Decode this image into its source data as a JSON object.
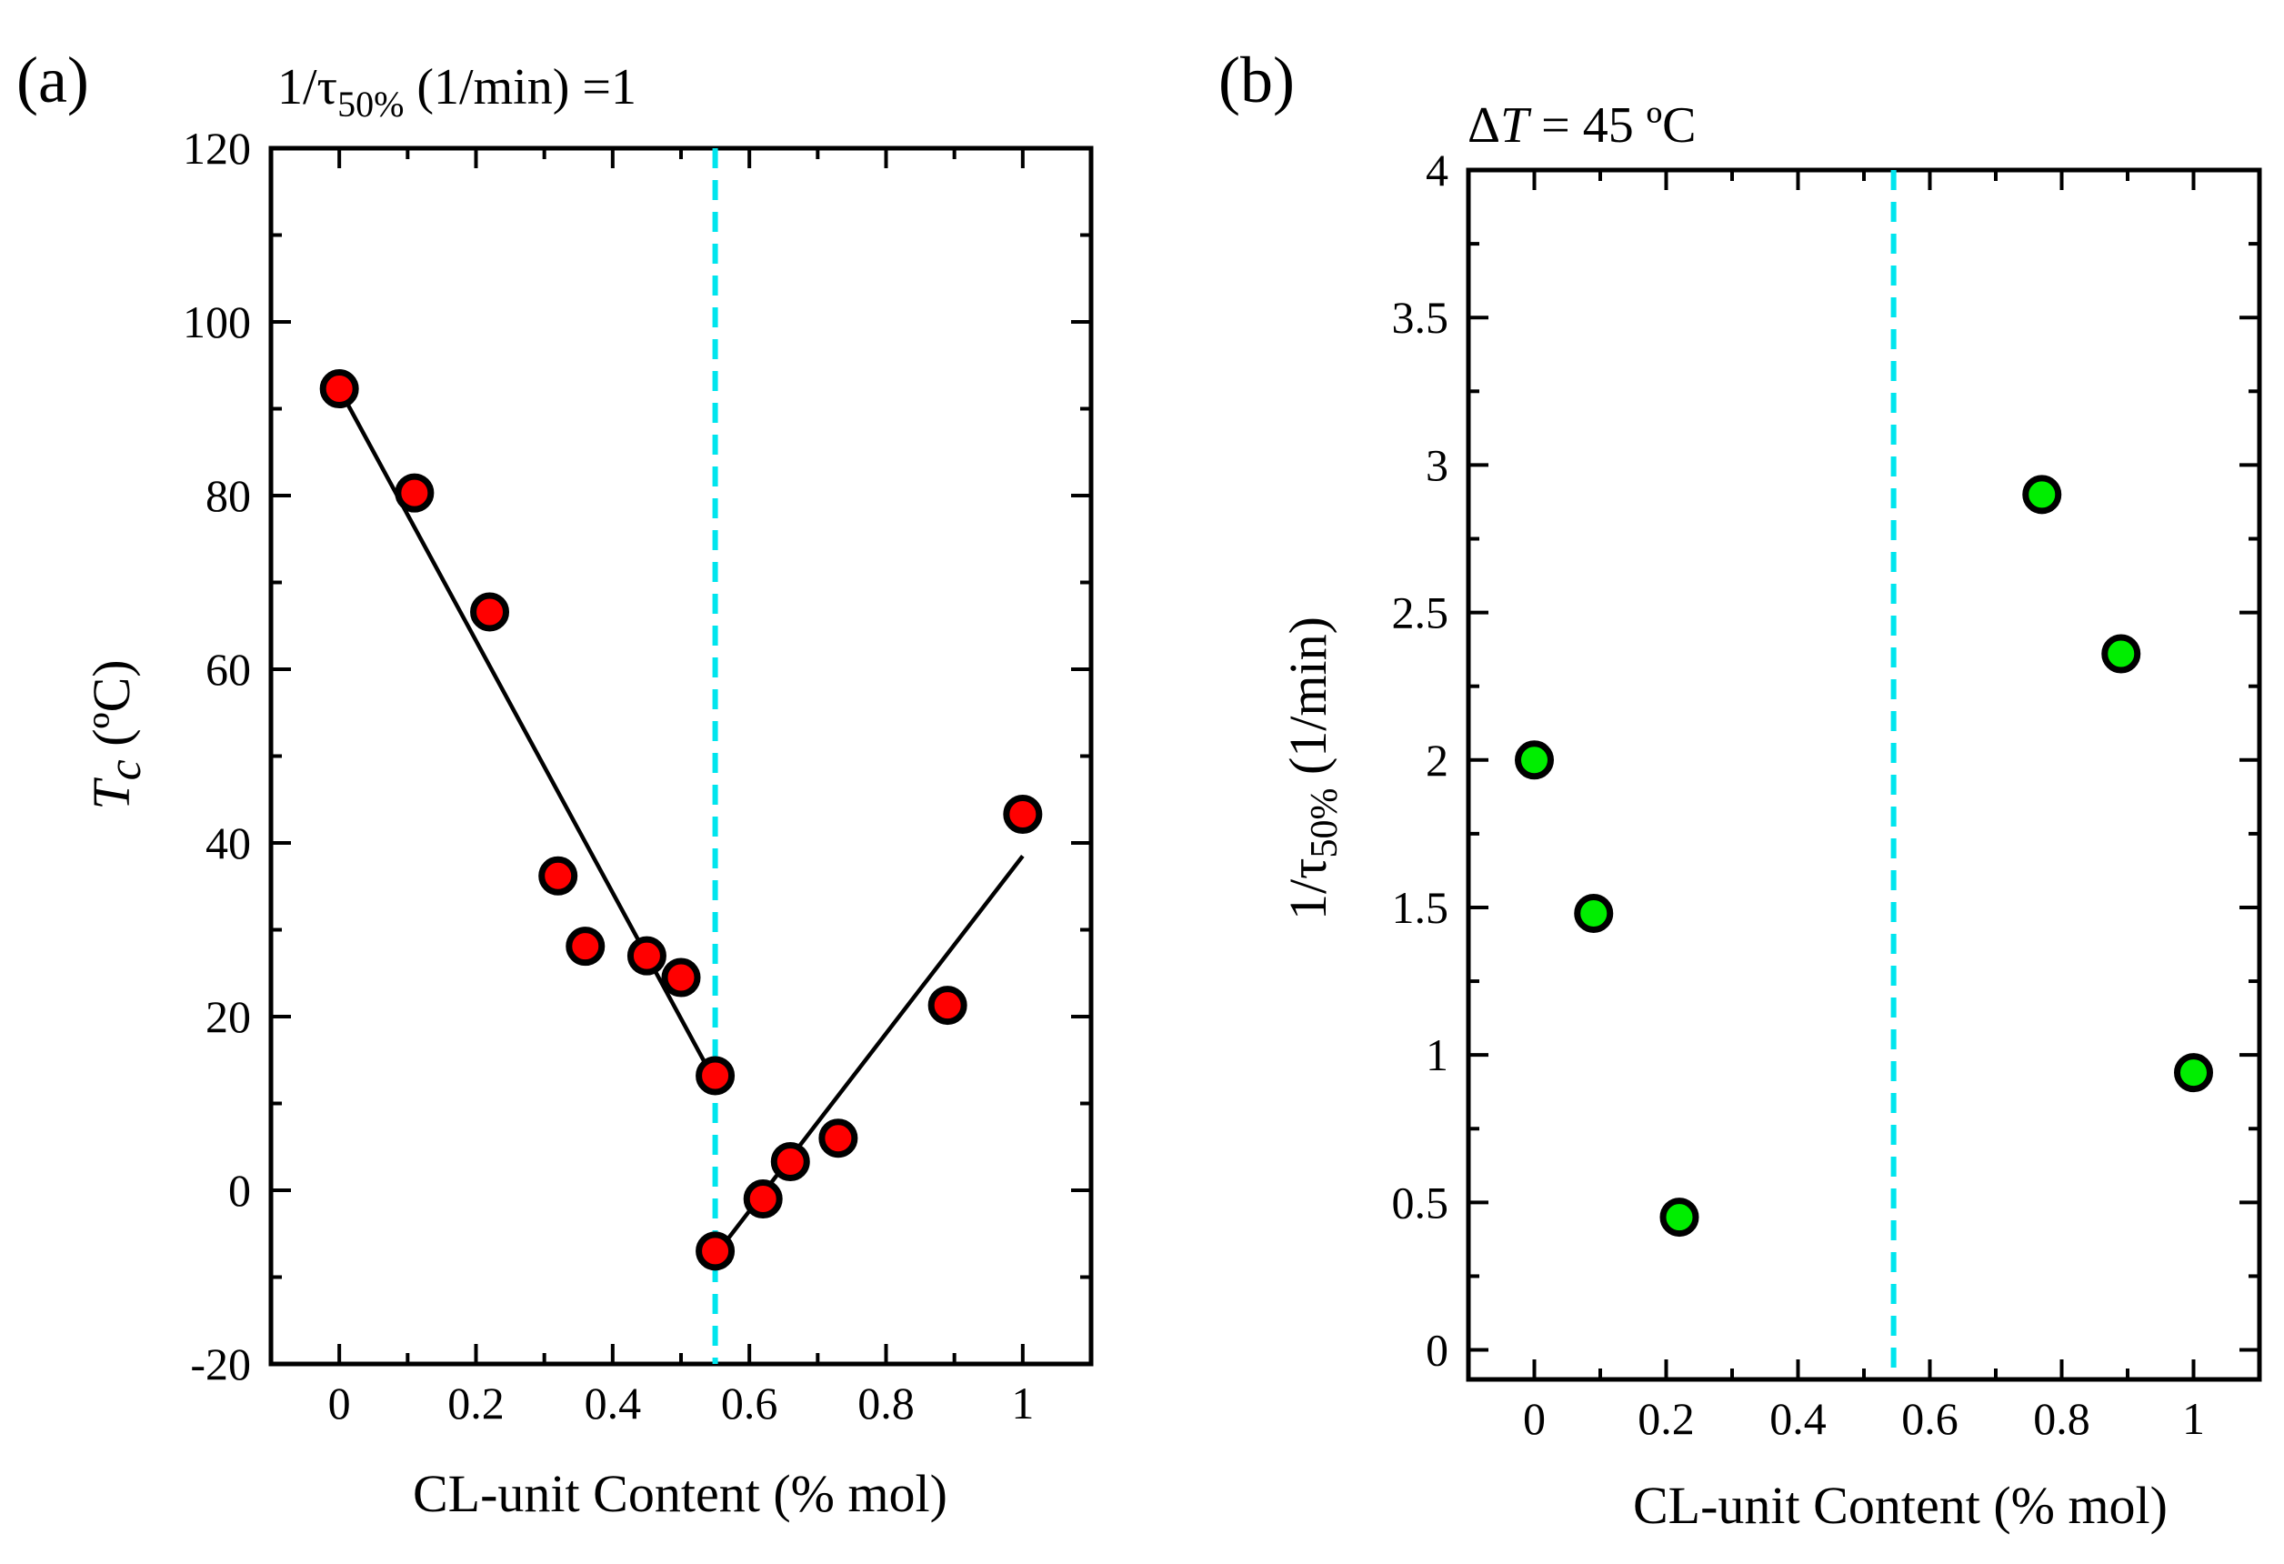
{
  "chart_data": [
    {
      "panel": "(a)",
      "type": "scatter",
      "title": "1/τ50% (1/min) =1",
      "title_parts": [
        "1/τ",
        "50%",
        " (1/min) =1"
      ],
      "xlabel": "CL-unit Content (% mol)",
      "ylabel": "Tc (ºC)",
      "ylabel_parts": [
        "T",
        "c",
        " (ºC)"
      ],
      "xlim": [
        -0.1,
        1.1
      ],
      "ylim": [
        -20,
        120
      ],
      "xticks": [
        0,
        0.2,
        0.4,
        0.6,
        0.8,
        1
      ],
      "xtick_labels": [
        "0",
        "0.2",
        "0.4",
        "0.6",
        "0.8",
        "1"
      ],
      "yticks": [
        -20,
        0,
        20,
        40,
        60,
        80,
        100,
        120
      ],
      "ytick_labels": [
        "-20",
        "0",
        "20",
        "40",
        "60",
        "80",
        "100",
        "120"
      ],
      "marker_color": "#ff0000",
      "points": [
        {
          "x": 0,
          "y": 92.3
        },
        {
          "x": 0.11,
          "y": 80.3
        },
        {
          "x": 0.22,
          "y": 66.6
        },
        {
          "x": 0.32,
          "y": 36.2
        },
        {
          "x": 0.36,
          "y": 28.1
        },
        {
          "x": 0.45,
          "y": 27.0
        },
        {
          "x": 0.5,
          "y": 24.5
        },
        {
          "x": 0.55,
          "y": 13.2
        },
        {
          "x": 0.55,
          "y": -7.0
        },
        {
          "x": 0.62,
          "y": -1.0
        },
        {
          "x": 0.66,
          "y": 3.3
        },
        {
          "x": 0.73,
          "y": 6.0
        },
        {
          "x": 0.89,
          "y": 21.3
        },
        {
          "x": 1.0,
          "y": 43.3
        }
      ],
      "fit_lines": [
        {
          "x": [
            0,
            0.55
          ],
          "y": [
            92.3,
            12.5
          ]
        },
        {
          "x": [
            0.55,
            1.0
          ],
          "y": [
            -7.5,
            38.5
          ]
        }
      ],
      "vline": {
        "x": 0.55,
        "color": "#00e5ee",
        "style": "dashed"
      }
    },
    {
      "panel": "(b)",
      "type": "scatter",
      "title": "ΔT = 45 ºC",
      "title_parts": [
        "Δ",
        "T",
        " = 45 ºC"
      ],
      "xlabel": "CL-unit Content (% mol)",
      "ylabel": "1/τ50%  (1/min)",
      "ylabel_parts": [
        "1/τ",
        "50%",
        "  (1/min)"
      ],
      "xlim": [
        -0.1,
        1.1
      ],
      "ylim": [
        -0.1,
        4
      ],
      "xticks": [
        0,
        0.2,
        0.4,
        0.6,
        0.8,
        1
      ],
      "xtick_labels": [
        "0",
        "0.2",
        "0.4",
        "0.6",
        "0.8",
        "1"
      ],
      "yticks": [
        0,
        0.5,
        1,
        1.5,
        2,
        2.5,
        3,
        3.5,
        4
      ],
      "ytick_labels": [
        "0",
        "0.5",
        "1",
        "1.5",
        "2",
        "2.5",
        "3",
        "3.5",
        "4"
      ],
      "marker_color": "#00ee00",
      "points": [
        {
          "x": 0,
          "y": 2.0
        },
        {
          "x": 0.09,
          "y": 1.48
        },
        {
          "x": 0.22,
          "y": 0.45
        },
        {
          "x": 0.77,
          "y": 2.9
        },
        {
          "x": 0.89,
          "y": 2.36
        },
        {
          "x": 1.0,
          "y": 0.94
        }
      ],
      "fit_lines": [],
      "vline": {
        "x": 0.545,
        "color": "#00e5ee",
        "style": "dashed"
      }
    }
  ]
}
